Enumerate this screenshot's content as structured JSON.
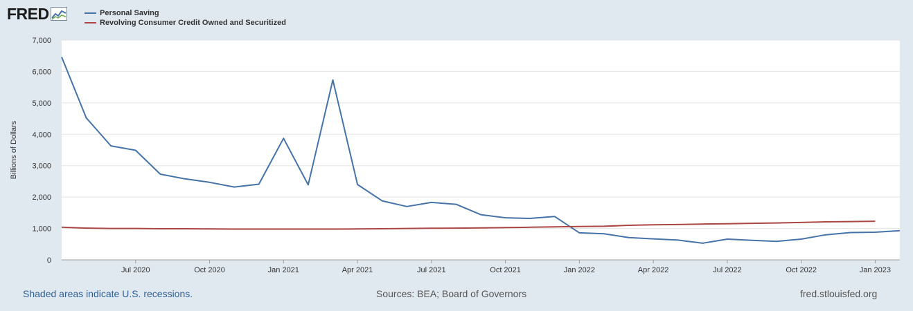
{
  "logo": {
    "text": "FRED",
    "icon": "line-chart-icon"
  },
  "legend": [
    {
      "label": "Personal Saving",
      "color": "#4572a7"
    },
    {
      "label": "Revolving Consumer Credit Owned and Securitized",
      "color": "#aa4643"
    }
  ],
  "footer": {
    "left": "Shaded areas indicate U.S. recessions.",
    "middle": "Sources: BEA; Board of Governors",
    "right": "fred.stlouisfed.org"
  },
  "chart_data": {
    "type": "line",
    "title": "",
    "xlabel": "",
    "ylabel": "Billions of Dollars",
    "ylim": [
      0,
      7000
    ],
    "yticks": [
      0,
      1000,
      2000,
      3000,
      4000,
      5000,
      6000,
      7000
    ],
    "ytick_labels": [
      "0",
      "1,000",
      "2,000",
      "3,000",
      "4,000",
      "5,000",
      "6,000",
      "7,000"
    ],
    "x_start": "Apr 2020",
    "xticks": [
      {
        "month_index": 3,
        "label": "Jul 2020"
      },
      {
        "month_index": 6,
        "label": "Oct 2020"
      },
      {
        "month_index": 9,
        "label": "Jan 2021"
      },
      {
        "month_index": 12,
        "label": "Apr 2021"
      },
      {
        "month_index": 15,
        "label": "Jul 2021"
      },
      {
        "month_index": 18,
        "label": "Oct 2021"
      },
      {
        "month_index": 21,
        "label": "Jan 2022"
      },
      {
        "month_index": 24,
        "label": "Apr 2022"
      },
      {
        "month_index": 27,
        "label": "Jul 2022"
      },
      {
        "month_index": 30,
        "label": "Oct 2022"
      },
      {
        "month_index": 33,
        "label": "Jan 2023"
      }
    ],
    "xlim": [
      0,
      34
    ],
    "series": [
      {
        "name": "Personal Saving",
        "color": "#4572a7",
        "values": [
          6460,
          4520,
          3630,
          3490,
          2730,
          2580,
          2470,
          2320,
          2410,
          3870,
          2390,
          5730,
          2400,
          1880,
          1700,
          1830,
          1770,
          1440,
          1340,
          1320,
          1380,
          860,
          830,
          710,
          670,
          630,
          530,
          660,
          620,
          590,
          660,
          800,
          870,
          880,
          930
        ]
      },
      {
        "name": "Revolving Consumer Credit Owned and Securitized",
        "color": "#aa4643",
        "values": [
          1040,
          1010,
          1000,
          1000,
          990,
          990,
          985,
          980,
          980,
          980,
          980,
          980,
          985,
          990,
          1000,
          1005,
          1010,
          1020,
          1030,
          1040,
          1050,
          1060,
          1070,
          1100,
          1115,
          1125,
          1140,
          1150,
          1165,
          1175,
          1190,
          1210,
          1220,
          1230
        ]
      }
    ]
  }
}
